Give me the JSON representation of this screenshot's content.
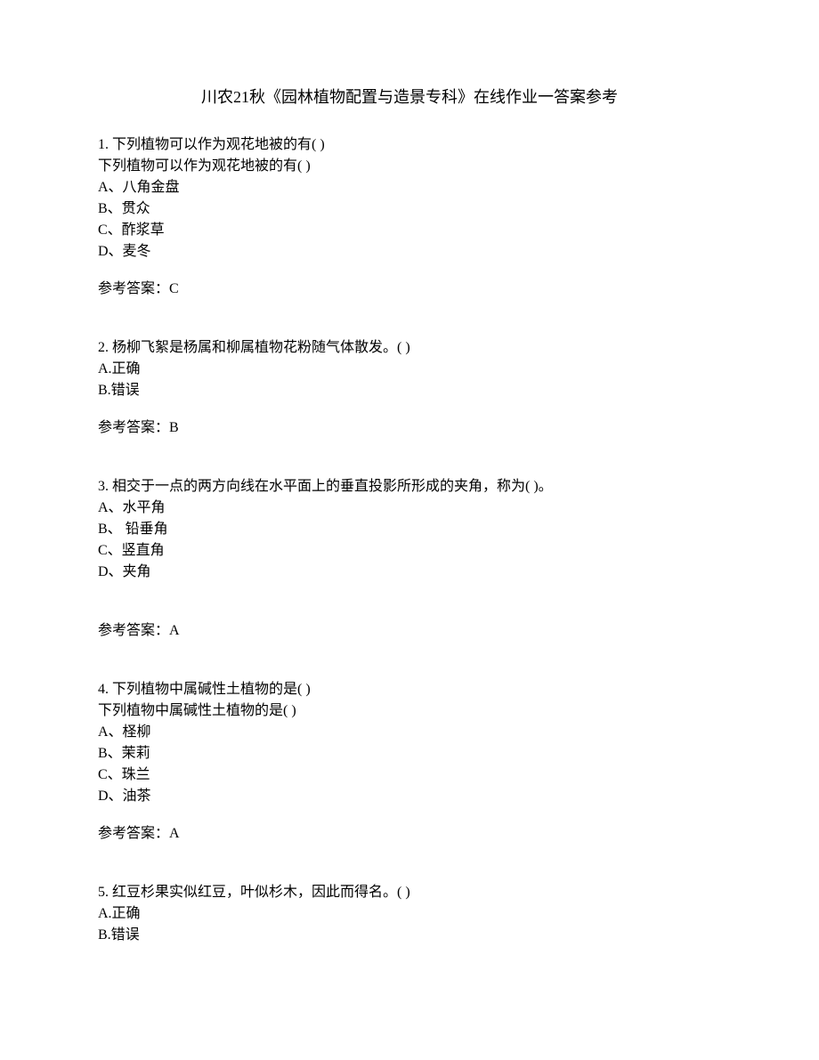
{
  "title": "川农21秋《园林植物配置与造景专科》在线作业一答案参考",
  "questions": [
    {
      "number": "1.",
      "text1": " 下列植物可以作为观花地被的有(  )",
      "text2": "下列植物可以作为观花地被的有(  )",
      "options": [
        "A、八角金盘",
        "B、贯众",
        "C、酢浆草",
        "D、麦冬"
      ],
      "answer": "参考答案：C"
    },
    {
      "number": "2.",
      "text1": " 杨柳飞絮是杨属和柳属植物花粉随气体散发。(  )",
      "options": [
        "A.正确",
        "B.错误"
      ],
      "answer": "参考答案：B"
    },
    {
      "number": "3.",
      "text1": " 相交于一点的两方向线在水平面上的垂直投影所形成的夹角，称为(  )。",
      "options": [
        "A、水平角",
        "B、 铅垂角",
        "C、竖直角",
        "D、夹角"
      ],
      "answer": "参考答案：A",
      "extraSpace": true
    },
    {
      "number": "4.",
      "text1": " 下列植物中属碱性土植物的是(  )",
      "text2": "下列植物中属碱性土植物的是(  )",
      "options": [
        "A、柽柳",
        "B、茉莉",
        "C、珠兰",
        "D、油茶"
      ],
      "answer": "参考答案：A"
    },
    {
      "number": "5.",
      "text1": " 红豆杉果实似红豆，叶似杉木，因此而得名。(  )",
      "options": [
        "A.正确",
        "B.错误"
      ]
    }
  ]
}
